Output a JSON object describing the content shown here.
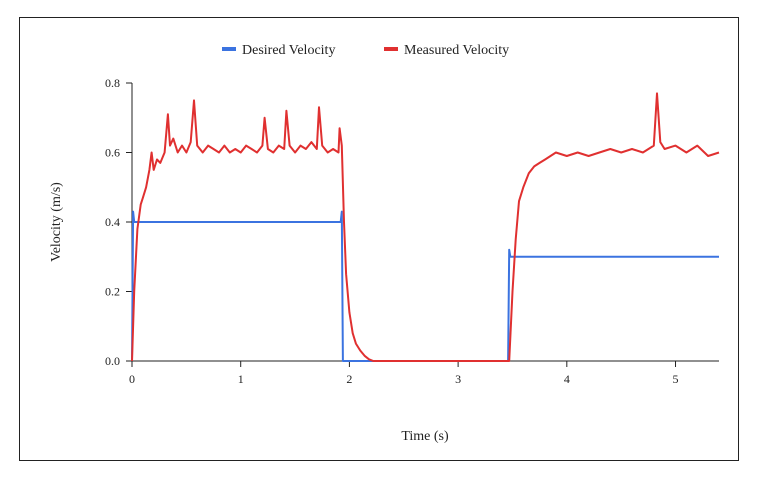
{
  "chart_data": {
    "type": "line",
    "xlabel": "Time (s)",
    "ylabel": "Velocity (m/s)",
    "xlim": [
      0,
      5.4
    ],
    "ylim": [
      0,
      0.8
    ],
    "x_ticks": [
      0,
      1,
      2,
      3,
      4,
      5
    ],
    "y_ticks": [
      "0.0",
      "0.2",
      "0.4",
      "0.6",
      "0.8"
    ],
    "legend_position": "top-center",
    "grid": false,
    "series": [
      {
        "name": "Desired Velocity",
        "color": "#3b73e0",
        "x": [
          0,
          0.01,
          0.02,
          0.04,
          1.92,
          1.93,
          1.94,
          1.95,
          3.46,
          3.47,
          3.48,
          3.49,
          5.4
        ],
        "y": [
          0,
          0.43,
          0.4,
          0.4,
          0.4,
          0.43,
          0.0,
          0.0,
          0.0,
          0.32,
          0.3,
          0.3,
          0.3
        ]
      },
      {
        "name": "Measured Velocity",
        "color": "#e03030",
        "x": [
          0,
          0.02,
          0.05,
          0.08,
          0.1,
          0.13,
          0.16,
          0.18,
          0.2,
          0.23,
          0.26,
          0.3,
          0.33,
          0.35,
          0.38,
          0.42,
          0.46,
          0.5,
          0.54,
          0.57,
          0.6,
          0.65,
          0.7,
          0.75,
          0.8,
          0.85,
          0.9,
          0.95,
          1.0,
          1.05,
          1.1,
          1.15,
          1.2,
          1.22,
          1.25,
          1.3,
          1.35,
          1.4,
          1.42,
          1.45,
          1.5,
          1.55,
          1.6,
          1.65,
          1.7,
          1.72,
          1.75,
          1.8,
          1.85,
          1.9,
          1.91,
          1.93,
          1.95,
          1.97,
          2.0,
          2.03,
          2.06,
          2.1,
          2.14,
          2.18,
          2.22,
          2.3,
          3.47,
          3.5,
          3.53,
          3.56,
          3.6,
          3.65,
          3.7,
          3.75,
          3.8,
          3.85,
          3.9,
          4.0,
          4.1,
          4.2,
          4.3,
          4.4,
          4.5,
          4.6,
          4.7,
          4.8,
          4.83,
          4.86,
          4.9,
          5.0,
          5.1,
          5.2,
          5.3,
          5.4
        ],
        "y": [
          0,
          0.2,
          0.38,
          0.45,
          0.47,
          0.5,
          0.55,
          0.6,
          0.55,
          0.58,
          0.57,
          0.6,
          0.71,
          0.62,
          0.64,
          0.6,
          0.62,
          0.6,
          0.63,
          0.75,
          0.62,
          0.6,
          0.62,
          0.61,
          0.6,
          0.62,
          0.6,
          0.61,
          0.6,
          0.62,
          0.61,
          0.6,
          0.62,
          0.7,
          0.61,
          0.6,
          0.62,
          0.61,
          0.72,
          0.62,
          0.6,
          0.62,
          0.61,
          0.63,
          0.61,
          0.73,
          0.62,
          0.6,
          0.61,
          0.6,
          0.67,
          0.62,
          0.4,
          0.25,
          0.14,
          0.08,
          0.05,
          0.03,
          0.015,
          0.005,
          0.0,
          0.0,
          0.0,
          0.2,
          0.35,
          0.46,
          0.5,
          0.54,
          0.56,
          0.57,
          0.58,
          0.59,
          0.6,
          0.59,
          0.6,
          0.59,
          0.6,
          0.61,
          0.6,
          0.61,
          0.6,
          0.62,
          0.77,
          0.63,
          0.61,
          0.62,
          0.6,
          0.62,
          0.59,
          0.6
        ]
      }
    ]
  }
}
